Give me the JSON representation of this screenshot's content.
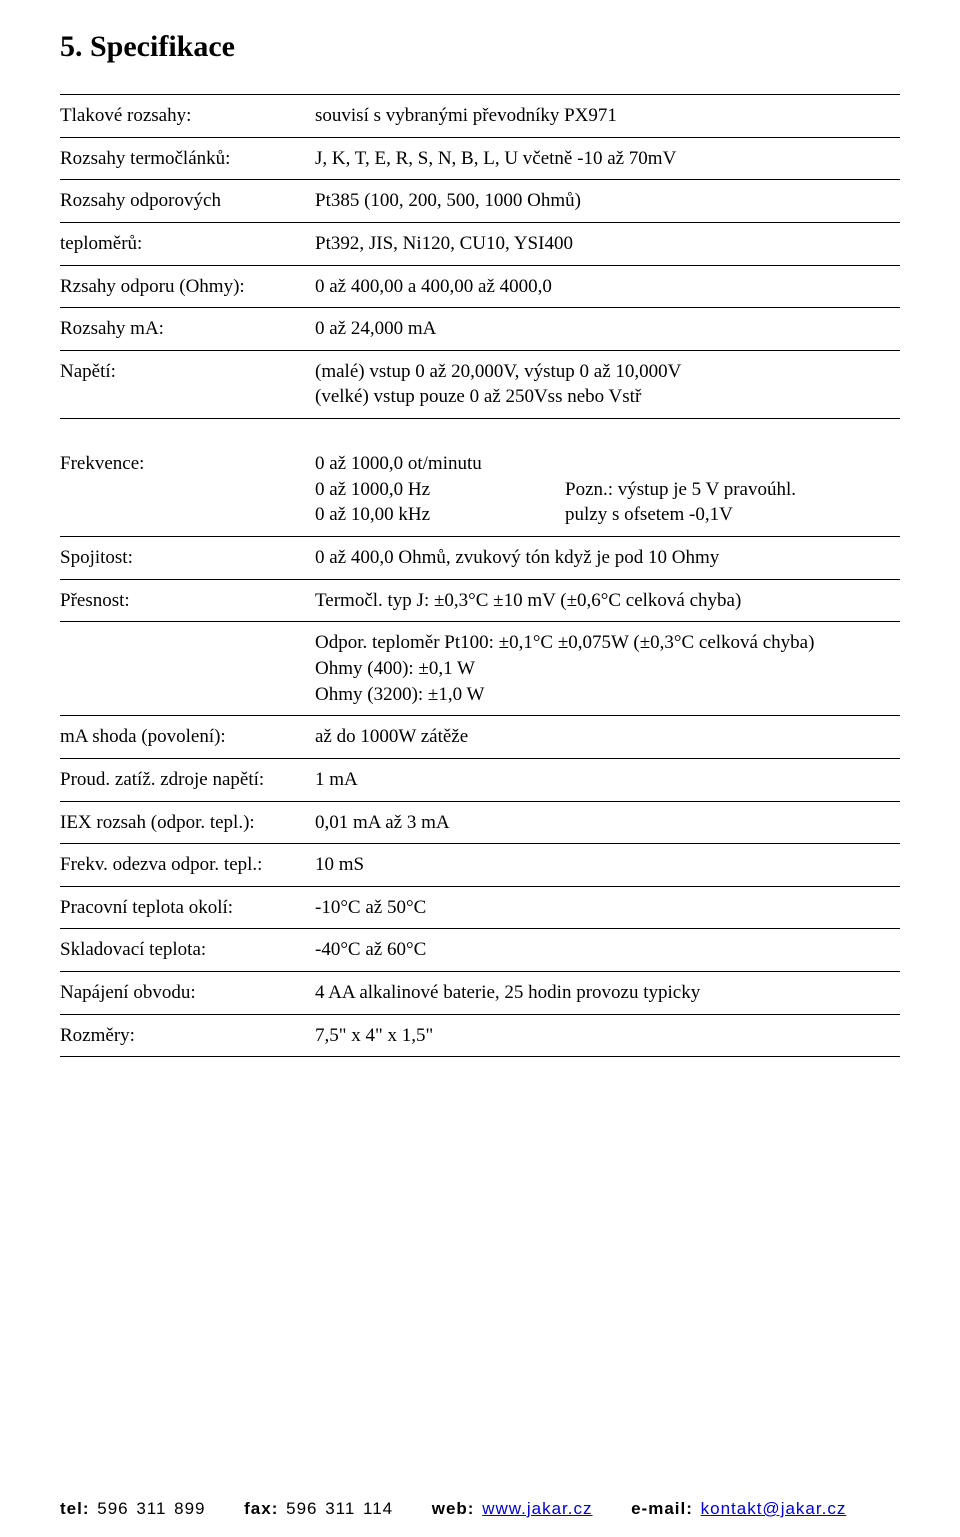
{
  "colors": {
    "text": "#000000",
    "background": "#ffffff",
    "rule": "#000000",
    "link": "#0000cc"
  },
  "title": "5. Specifikace",
  "rows1": [
    {
      "label": "Tlakové rozsahy:",
      "value": "souvisí s vybranými převodníky PX971"
    },
    {
      "label": "Rozsahy termočlánků:",
      "value": "J, K, T, E, R, S, N, B, L, U včetně -10 až 70mV"
    },
    {
      "label": "Rozsahy odporových",
      "value": "Pt385 (100, 200, 500, 1000 Ohmů)"
    },
    {
      "label": "teploměrů:",
      "value": "Pt392, JIS, Ni120, CU10, YSI400"
    },
    {
      "label": "Rzsahy odporu (Ohmy):",
      "value": "0 až 400,00 a 400,00 až 4000,0"
    },
    {
      "label": "Rozsahy mA:",
      "value": "0 až 24,000 mA"
    },
    {
      "label": "Napětí:",
      "value": "(malé) vstup 0 až 20,000V, výstup 0 až 10,000V\n(velké) vstup pouze 0 až 250Vss nebo Vstř"
    }
  ],
  "freq_label": "Frekvence:",
  "freq_lines": [
    {
      "left": "0 až 1000,0 ot/minutu",
      "right": ""
    },
    {
      "left": "0 až 1000,0 Hz",
      "right": "Pozn.: výstup je 5 V pravoúhl."
    },
    {
      "left": "0 až 10,00 kHz",
      "right": "pulzy s ofsetem -0,1V"
    }
  ],
  "rows2": [
    {
      "label": "Spojitost:",
      "value": "0 až 400,0 Ohmů, zvukový tón když je pod 10 Ohmy"
    },
    {
      "label": "Přesnost:",
      "value": "Termočl. typ J: ±0,3°C ±10 mV (±0,6°C celková chyba)"
    }
  ],
  "block_after_presnost": "Odpor. teploměr Pt100: ±0,1°C ±0,075W (±0,3°C celková chyba)\nOhmy (400): ±0,1 W\nOhmy (3200): ±1,0 W",
  "rows3": [
    {
      "label": "mA shoda (povolení):",
      "value": "až do 1000W zátěže"
    },
    {
      "label": "Proud. zatíž. zdroje napětí:",
      "value": "1 mA"
    },
    {
      "label": "IEX rozsah (odpor. tepl.):",
      "value": "0,01 mA až 3 mA"
    },
    {
      "label": "Frekv. odezva odpor. tepl.:",
      "value": "10 mS"
    },
    {
      "label": "Pracovní teplota okolí:",
      "value": "-10°C až 50°C"
    },
    {
      "label": "Skladovací teplota:",
      "value": "-40°C až 60°C"
    },
    {
      "label": "Napájení obvodu:",
      "value": "4 AA alkalinové baterie, 25 hodin provozu typicky"
    },
    {
      "label": "Rozměry:",
      "value": "7,5\" x 4\" x 1,5\""
    }
  ],
  "contact": {
    "tel_label": "tel:",
    "tel": "596 311 899",
    "fax_label": "fax:",
    "fax": "596 311 114",
    "web_label": "web:",
    "web": "www.jakar.cz",
    "email_label": "e-mail:",
    "email": "kontakt@jakar.cz"
  }
}
